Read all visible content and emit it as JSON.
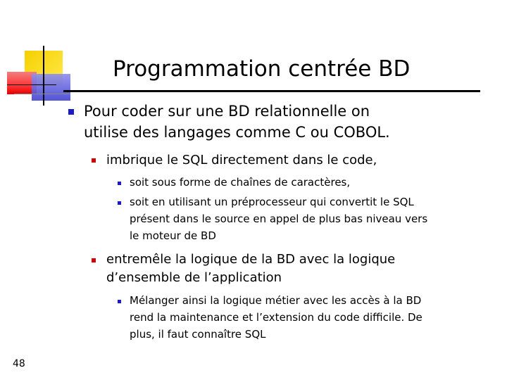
{
  "slide": {
    "title": "Programmation centrée BD",
    "page_number": "48"
  },
  "bullets": {
    "b1_line1": "Pour coder sur une BD relationnelle on",
    "b1_line2": "utilise des langages comme C ou COBOL.",
    "b1_1": "imbrique le SQL directement dans le code,",
    "b1_1_1": "soit sous forme de chaînes de caractères,",
    "b1_1_2_line1": "soit en utilisant un préprocesseur qui convertit le SQL",
    "b1_1_2_line2": "présent dans le source en appel de plus bas niveau vers",
    "b1_1_2_line3": "le moteur de BD",
    "b1_2_line1": "entremêle la logique de la BD avec la logique",
    "b1_2_line2": "d’ensemble de l’application",
    "b1_2_1_line1": "Mélanger ainsi la logique métier avec les accès à la BD",
    "b1_2_1_line2": "rend la maintenance et l’extension du code difficile. De",
    "b1_2_1_line3": "plus, il faut connaître SQL"
  },
  "colors": {
    "bullet_level1": "#1a1ac8",
    "bullet_level2": "#cc0000",
    "bullet_level3": "#1a1ac8"
  }
}
